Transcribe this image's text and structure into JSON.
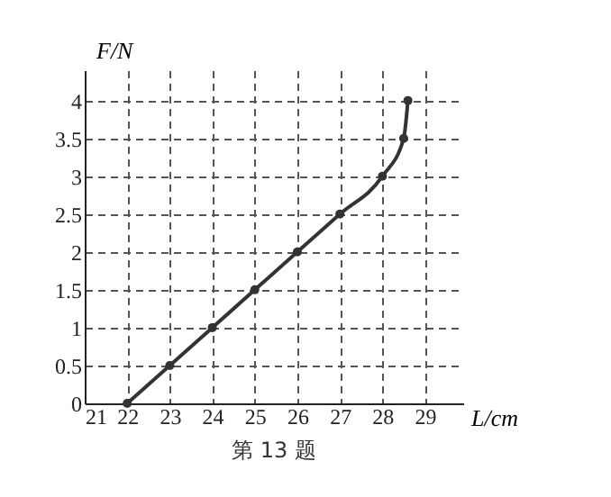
{
  "chart_data": {
    "type": "line",
    "xlabel": "L/cm",
    "ylabel": "F/N",
    "annotations": [
      "第 13 题"
    ],
    "x": [
      22,
      23,
      24,
      25,
      26,
      27,
      28,
      28.5,
      28.6
    ],
    "series": [
      {
        "color": "#333333",
        "values": [
          0,
          0.5,
          1,
          1.5,
          2,
          2.5,
          3,
          3.5,
          4
        ]
      }
    ],
    "xlim": [
      21,
      29.9
    ],
    "xticks": [
      21,
      22,
      23,
      24,
      25,
      26,
      27,
      28,
      29
    ],
    "ylim": [
      0,
      4.4
    ],
    "yticks": [
      0,
      0.5,
      1,
      1.5,
      2,
      2.5,
      3,
      3.5,
      4
    ],
    "grid": true,
    "marker": "circle",
    "line_style": "solid"
  }
}
